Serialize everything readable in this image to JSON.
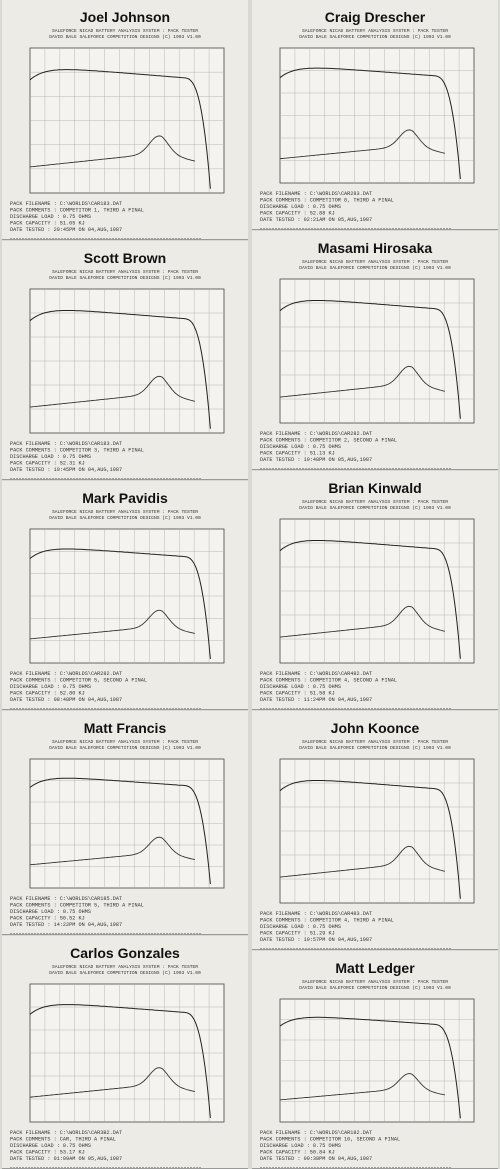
{
  "header_lines": [
    "SALEFORCE NICAD BATTERY ANALYSIS SYSTEM : PACK TESTER",
    "DAVID BALE SALEFORCE COMPETITION DESIGNS (C) 1993 V1.00"
  ],
  "panels": [
    {
      "name": "Joel Johnson",
      "lines": [
        "PACK FILENAME : C:\\WORLDS\\CAR183.DAT",
        "PACK COMMENTS : COMPETITOR 1, THIRD A FINAL",
        "DISCHARGE LOAD : 0.75 OHMS",
        "PACK CAPACITY : 51.05 KJ",
        "DATE TESTED : 20:45PM ON 04,AUG,1987"
      ]
    },
    {
      "name": "Scott Brown",
      "lines": [
        "PACK FILENAME : C:\\WORLDS\\CAR183.DAT",
        "PACK COMMENTS : COMPETITOR 3, THIRD A FINAL",
        "DISCHARGE LOAD : 0.75 OHMS",
        "PACK CAPACITY : 52.31 KJ",
        "DATE TESTED : 10:45PM ON 04,AUG,1987"
      ]
    },
    {
      "name": "Mark Pavidis",
      "lines": [
        "PACK FILENAME : C:\\WORLDS\\CAR282.DAT",
        "PACK COMMENTS : COMPETITOR 5, SECOND A FINAL",
        "DISCHARGE LOAD : 0.75 OHMS",
        "PACK CAPACITY : 52.80 KJ",
        "DATE TESTED : 08:48PM ON 04,AUG,1987"
      ]
    },
    {
      "name": "Matt Francis",
      "lines": [
        "PACK FILENAME : C:\\WORLDS\\CAR185.DAT",
        "PACK COMMENTS : COMPETITOR 5, THIRD A FINAL",
        "DISCHARGE LOAD : 0.75 OHMS",
        "PACK CAPACITY : 50.52 KJ",
        "DATE TESTED : 14:22PM ON 04,AUG,1987"
      ]
    },
    {
      "name": "Carlos Gonzales",
      "lines": [
        "PACK FILENAME : C:\\WORLDS\\CAR3B2.DAT",
        "PACK COMMENTS : CAR, THIRD A FINAL",
        "DISCHARGE LOAD : 0.75 OHMS",
        "PACK CAPACITY : 53.17 KJ",
        "DATE TESTED : 01:09AM ON 05,AUG,1987"
      ]
    },
    {
      "name": "Craig Drescher",
      "lines": [
        "PACK FILENAME : C:\\WORLDS\\CAR283.DAT",
        "PACK COMMENTS : COMPETITOR 8, THIRD A FINAL",
        "DISCHARGE LOAD : 0.75 OHMS",
        "PACK CAPACITY : 52.88 KJ",
        "DATE TESTED : 02:21AM ON 05,AUG,1987"
      ]
    },
    {
      "name": "Masami Hirosaka",
      "lines": [
        "PACK FILENAME : C:\\WORLDS\\CAR282.DAT",
        "PACK COMMENTS : COMPETITOR 2, SECOND A FINAL",
        "DISCHARGE LOAD : 0.75 OHMS",
        "PACK CAPACITY : 51.13 KJ",
        "DATE TESTED : 10:48PM ON 05,AUG,1987"
      ]
    },
    {
      "name": "Brian Kinwald",
      "lines": [
        "PACK FILENAME : C:\\WORLDS\\CAR482.DAT",
        "PACK COMMENTS : COMPETITOR 4, SECOND A FINAL",
        "DISCHARGE LOAD : 0.75 OHMS",
        "PACK CAPACITY : 51.58 KJ",
        "DATE TESTED : 11:24PM ON 04,AUG,1987"
      ]
    },
    {
      "name": "John Koonce",
      "lines": [
        "PACK FILENAME : C:\\WORLDS\\CAR483.DAT",
        "PACK COMMENTS : COMPETITOR 4, THIRD A FINAL",
        "DISCHARGE LOAD : 0.75 OHMS",
        "PACK CAPACITY : 51.29 KJ",
        "DATE TESTED : 10:57PM ON 04,AUG,1987"
      ]
    },
    {
      "name": "Matt Ledger",
      "lines": [
        "PACK FILENAME : C:\\WORLDS\\CAR182.DAT",
        "PACK COMMENTS : COMPETITOR 10, SECOND A FINAL",
        "DISCHARGE LOAD : 0.75 OHMS",
        "PACK CAPACITY : 50.84 KJ",
        "DATE TESTED : 09:38PM ON 04,AUG,1987"
      ]
    }
  ]
}
